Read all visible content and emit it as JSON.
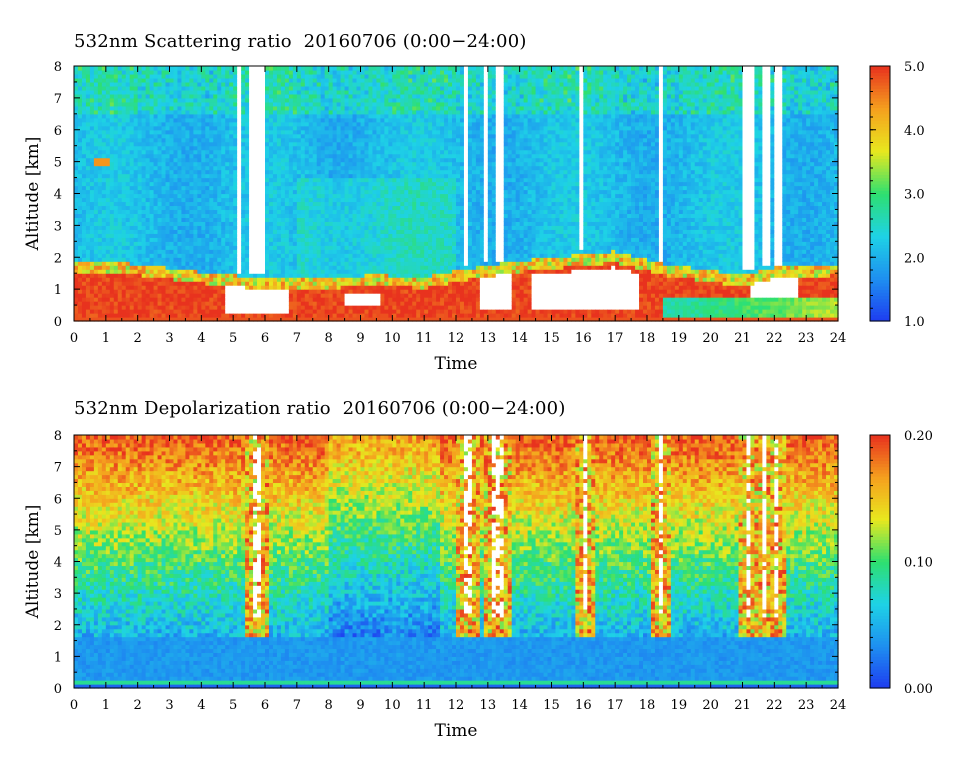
{
  "chart_data": [
    {
      "type": "heatmap",
      "title": "532nm Scattering ratio  20160706 (0:00−24:00)",
      "xlabel": "Time",
      "ylabel": "Altitude [km]",
      "x_ticks": [
        "0",
        "1",
        "2",
        "3",
        "4",
        "5",
        "6",
        "7",
        "8",
        "9",
        "10",
        "11",
        "12",
        "13",
        "14",
        "15",
        "16",
        "17",
        "18",
        "19",
        "20",
        "21",
        "22",
        "23",
        "24"
      ],
      "y_ticks": [
        "0",
        "1",
        "2",
        "3",
        "4",
        "5",
        "6",
        "7",
        "8"
      ],
      "xlim": [
        0,
        24
      ],
      "ylim": [
        0,
        8
      ],
      "colorbar": {
        "min": 1.0,
        "max": 5.0,
        "ticks": [
          "1.0",
          "2.0",
          "3.0",
          "4.0",
          "5.0"
        ],
        "tick_values": [
          1.0,
          2.0,
          3.0,
          4.0,
          5.0
        ]
      },
      "colormap": [
        "#1e3cf0",
        "#1e8ff0",
        "#1ed2e6",
        "#2ee070",
        "#e8e81e",
        "#f5a01e",
        "#e8321e"
      ],
      "cloud_columns": [
        {
          "t0": 5.1,
          "t1": 5.3
        },
        {
          "t0": 5.55,
          "t1": 5.95
        },
        {
          "t0": 12.2,
          "t1": 12.35
        },
        {
          "t0": 12.9,
          "t1": 13.05
        },
        {
          "t0": 13.3,
          "t1": 13.5
        },
        {
          "t0": 15.85,
          "t1": 16.0
        },
        {
          "t0": 18.4,
          "t1": 18.55
        },
        {
          "t0": 21.05,
          "t1": 21.35
        },
        {
          "t0": 21.6,
          "t1": 21.85
        },
        {
          "t0": 21.95,
          "t1": 22.2
        }
      ],
      "boundary_layer_top_km": [
        [
          0,
          1.9
        ],
        [
          2,
          1.8
        ],
        [
          4,
          1.55
        ],
        [
          6,
          1.35
        ],
        [
          8,
          1.4
        ],
        [
          9.5,
          1.45
        ],
        [
          11,
          1.4
        ],
        [
          12,
          1.6
        ],
        [
          13,
          1.75
        ],
        [
          14,
          1.9
        ],
        [
          16,
          2.1
        ],
        [
          17,
          2.2
        ],
        [
          18.5,
          1.8
        ],
        [
          20,
          1.6
        ],
        [
          21,
          1.45
        ],
        [
          22,
          1.7
        ],
        [
          24,
          1.8
        ]
      ]
    },
    {
      "type": "heatmap",
      "title": "532nm Depolarization ratio  20160706 (0:00−24:00)",
      "xlabel": "Time",
      "ylabel": "Altitude [km]",
      "x_ticks": [
        "0",
        "1",
        "2",
        "3",
        "4",
        "5",
        "6",
        "7",
        "8",
        "9",
        "10",
        "11",
        "12",
        "13",
        "14",
        "15",
        "16",
        "17",
        "18",
        "19",
        "20",
        "21",
        "22",
        "23",
        "24"
      ],
      "y_ticks": [
        "0",
        "1",
        "2",
        "3",
        "4",
        "5",
        "6",
        "7",
        "8"
      ],
      "xlim": [
        0,
        24
      ],
      "ylim": [
        0,
        8
      ],
      "colorbar": {
        "min": 0.0,
        "max": 0.2,
        "ticks": [
          "0.00",
          "0.10",
          "0.20"
        ],
        "tick_values": [
          0.0,
          0.1,
          0.2
        ]
      },
      "colormap": [
        "#1e3cf0",
        "#1e8ff0",
        "#1ed2e6",
        "#2ee070",
        "#e8e81e",
        "#f5a01e",
        "#e8321e"
      ],
      "cloud_columns": [
        {
          "t0": 5.6,
          "t1": 5.85
        },
        {
          "t0": 12.3,
          "t1": 12.5
        },
        {
          "t0": 13.15,
          "t1": 13.45
        },
        {
          "t0": 16.0,
          "t1": 16.15
        },
        {
          "t0": 18.4,
          "t1": 18.55
        },
        {
          "t0": 21.1,
          "t1": 21.3
        },
        {
          "t0": 21.65,
          "t1": 21.8
        },
        {
          "t0": 22.0,
          "t1": 22.15
        }
      ]
    }
  ]
}
